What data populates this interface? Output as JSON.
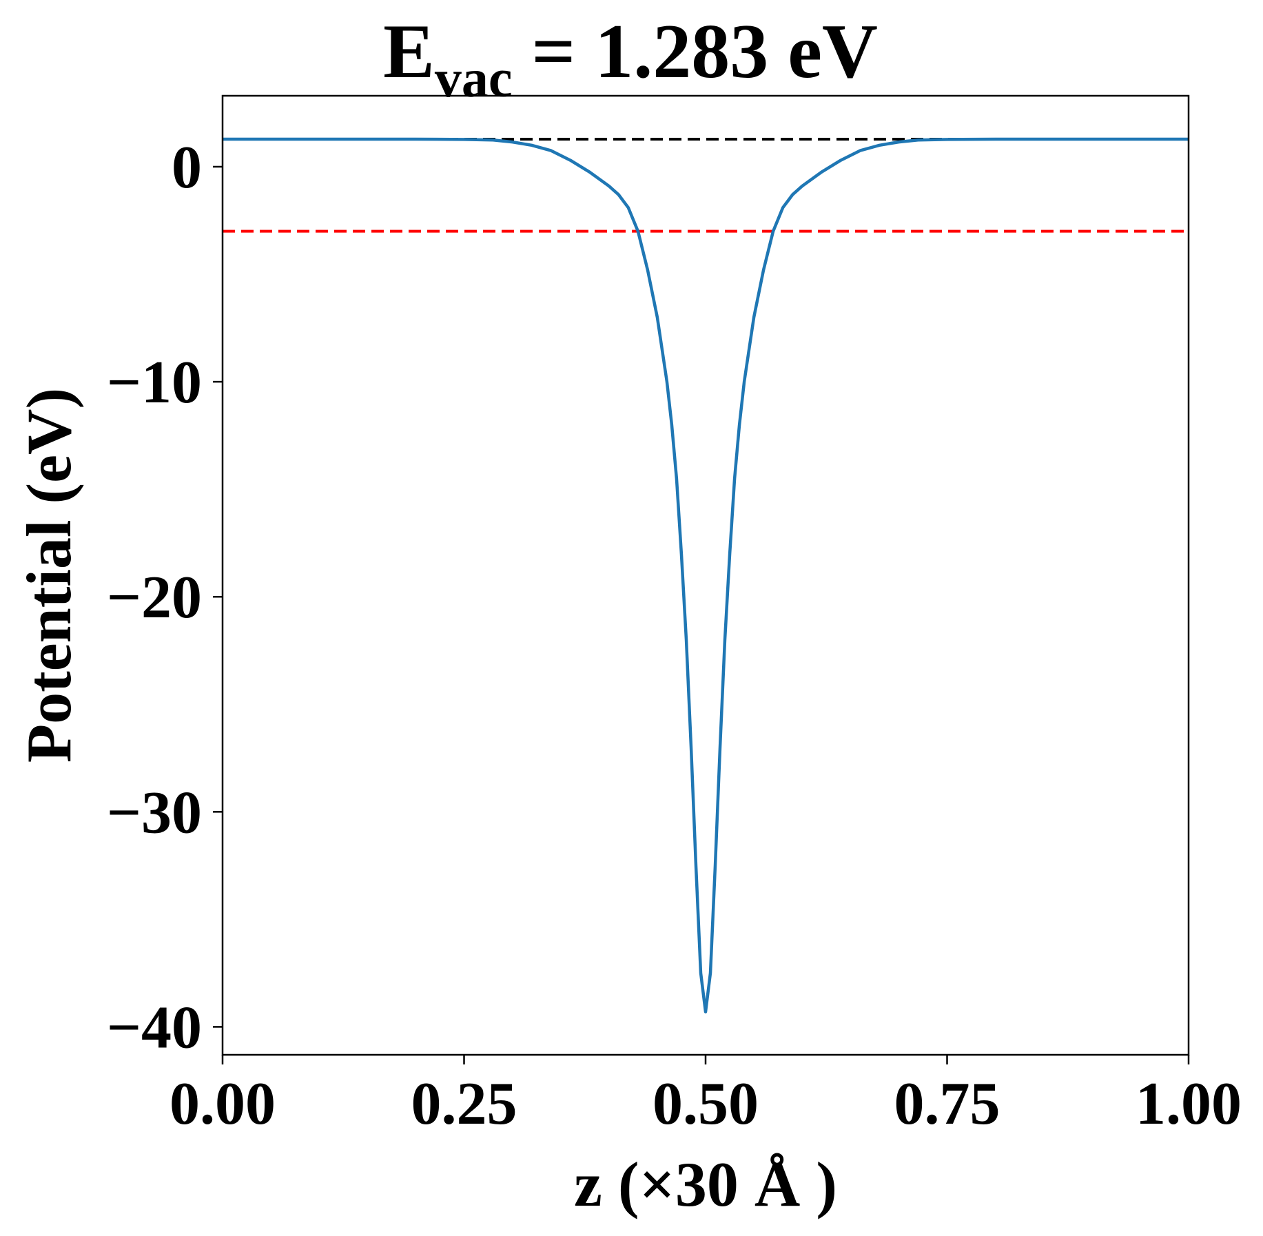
{
  "chart_data": {
    "type": "line",
    "title_main": "E",
    "title_sub": "vac",
    "title_rest": " = 1.283 eV",
    "xlabel": "z (×30 Å )",
    "ylabel": "Potential (eV)",
    "xlim": [
      0,
      1
    ],
    "ylim": [
      -41.3,
      3.3
    ],
    "xticks": [
      0,
      0.25,
      0.5,
      0.75,
      1.0
    ],
    "xtick_labels": [
      "0.00",
      "0.25",
      "0.50",
      "0.75",
      "1.00"
    ],
    "yticks": [
      0,
      -10,
      -20,
      -30,
      -40
    ],
    "ytick_labels": [
      "0",
      "−10",
      "−20",
      "−30",
      "−40"
    ],
    "grid": false,
    "hlines": [
      {
        "name": "vacuum-level",
        "y": 1.283,
        "color": "#000000",
        "style": "dashed"
      },
      {
        "name": "fermi-level",
        "y": -3.0,
        "color": "#ff0000",
        "style": "dashed"
      }
    ],
    "series": [
      {
        "name": "potential",
        "color": "#1f77b4",
        "x": [
          0,
          0.1,
          0.2,
          0.25,
          0.28,
          0.3,
          0.32,
          0.34,
          0.36,
          0.38,
          0.4,
          0.41,
          0.42,
          0.43,
          0.44,
          0.45,
          0.46,
          0.465,
          0.47,
          0.475,
          0.48,
          0.485,
          0.49,
          0.495,
          0.5,
          0.505,
          0.51,
          0.515,
          0.52,
          0.525,
          0.53,
          0.535,
          0.54,
          0.55,
          0.56,
          0.57,
          0.58,
          0.59,
          0.6,
          0.62,
          0.64,
          0.66,
          0.68,
          0.7,
          0.72,
          0.75,
          0.8,
          0.9,
          1.0
        ],
        "y": [
          1.283,
          1.283,
          1.28,
          1.27,
          1.24,
          1.15,
          1.0,
          0.75,
          0.3,
          -0.25,
          -0.9,
          -1.3,
          -1.9,
          -3.0,
          -4.8,
          -7.0,
          -10.0,
          -12.0,
          -14.5,
          -18.0,
          -22.0,
          -27.0,
          -32.5,
          -37.5,
          -39.3,
          -37.5,
          -32.5,
          -27.0,
          -22.0,
          -18.0,
          -14.5,
          -12.0,
          -10.0,
          -7.0,
          -4.8,
          -3.0,
          -1.9,
          -1.3,
          -0.9,
          -0.25,
          0.3,
          0.75,
          1.0,
          1.15,
          1.24,
          1.27,
          1.28,
          1.283,
          1.283
        ]
      }
    ]
  }
}
